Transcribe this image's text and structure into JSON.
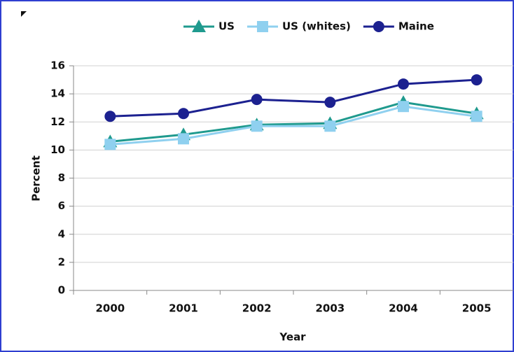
{
  "chart_data": {
    "type": "line",
    "categories": [
      "2000",
      "2001",
      "2002",
      "2003",
      "2004",
      "2005"
    ],
    "series": [
      {
        "name": "US",
        "color": "#1f9a8e",
        "marker": "triangle",
        "values": [
          10.6,
          11.1,
          11.8,
          11.9,
          13.4,
          12.6
        ]
      },
      {
        "name": "US (whites)",
        "color": "#8fd0ef",
        "marker": "square",
        "values": [
          10.4,
          10.8,
          11.7,
          11.7,
          13.1,
          12.4
        ]
      },
      {
        "name": "Maine",
        "color": "#1c2190",
        "marker": "circle",
        "values": [
          12.4,
          12.6,
          13.6,
          13.4,
          14.7,
          15.0
        ]
      }
    ],
    "x_label": "Year",
    "y_label": "Percent",
    "ylim": [
      0,
      16
    ],
    "yticks": [
      0,
      2,
      4,
      6,
      8,
      10,
      12,
      14,
      16
    ],
    "grid": true,
    "legend": "top"
  }
}
